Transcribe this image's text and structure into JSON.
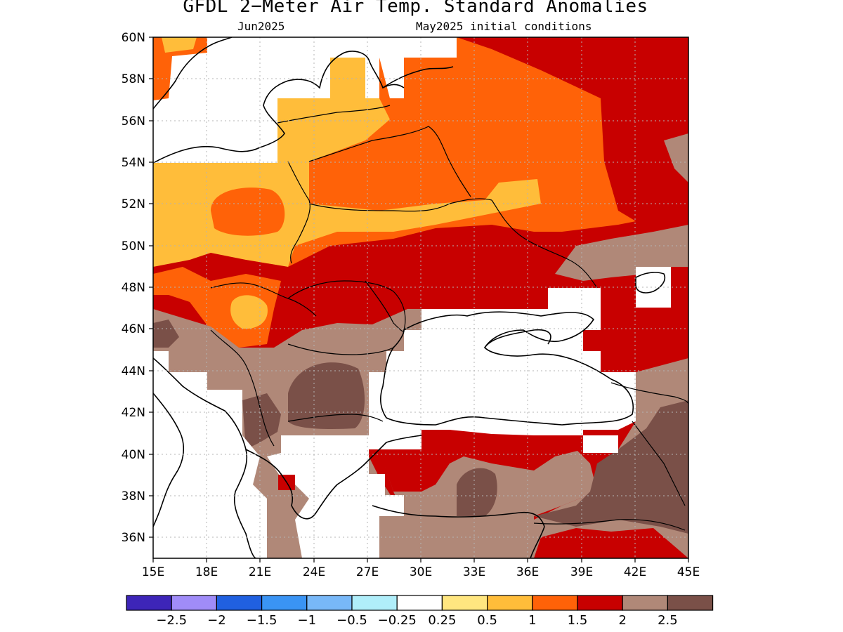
{
  "title": "GFDL 2−Meter Air Temp. Standard Anomalies",
  "subtitle_left": "Jun2025",
  "subtitle_right": "May2025 initial conditions",
  "axes": {
    "lon_ticks": [
      "15E",
      "18E",
      "21E",
      "24E",
      "27E",
      "30E",
      "33E",
      "36E",
      "39E",
      "42E",
      "45E"
    ],
    "lat_ticks": [
      "36N",
      "38N",
      "40N",
      "42N",
      "44N",
      "46N",
      "48N",
      "50N",
      "52N",
      "54N",
      "56N",
      "58N",
      "60N"
    ],
    "lon_range": [
      15,
      45
    ],
    "lat_range": [
      35,
      60
    ]
  },
  "colorbar": {
    "colors": [
      "#3d25b8",
      "#a08cf8",
      "#2060e0",
      "#3a94f4",
      "#78b8f8",
      "#b0eefa",
      "#ffffff",
      "#ffe680",
      "#ffbd3a",
      "#ff6208",
      "#c80000",
      "#b08878",
      "#7a5048"
    ],
    "labels": [
      "−2.5",
      "−2",
      "−1.5",
      "−1",
      "−0.5",
      "−0.25",
      "0.25",
      "0.5",
      "1",
      "1.5",
      "2",
      "2.5"
    ]
  },
  "anomaly_colors": {
    "white": "#ffffff",
    "light_orange": "#ffbd3a",
    "orange": "#ff6208",
    "red": "#c80000",
    "tan": "#b08878",
    "brown": "#7a5048"
  }
}
